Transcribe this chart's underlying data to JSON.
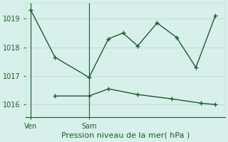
{
  "title": "Pression niveau de la mer( hPa )",
  "background_color": "#d8f0ec",
  "grid_color": "#c0ddd8",
  "line_color": "#1a5c2a",
  "yticks": [
    1016,
    1017,
    1018,
    1019
  ],
  "ylim": [
    1015.55,
    1019.55
  ],
  "xtick_labels": [
    "Ven",
    "Sam"
  ],
  "xtick_positions": [
    0,
    6
  ],
  "vline_positions": [
    0,
    6
  ],
  "series1_x": [
    0,
    2.5,
    6,
    8,
    9.5,
    11,
    13,
    15,
    17,
    19
  ],
  "series1_y": [
    1019.3,
    1017.65,
    1016.95,
    1018.3,
    1018.5,
    1018.05,
    1018.85,
    1018.35,
    1017.3,
    1019.1
  ],
  "series2_x": [
    2.5,
    6,
    8,
    11,
    14.5,
    17.5,
    19
  ],
  "series2_y": [
    1016.3,
    1016.3,
    1016.55,
    1016.35,
    1016.2,
    1016.05,
    1016.0
  ],
  "xlim": [
    -0.5,
    20
  ]
}
